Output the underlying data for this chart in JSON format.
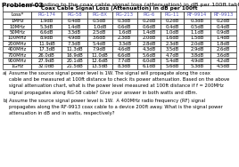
{
  "title_bold": "Problem 03",
  "title_text": "   According to the coax cable signal loss (attenuation) in dB per 100ft table:",
  "table_title": "Coax Cable Signal Loss (Attenuation) in dB per 100ft",
  "headers": [
    "Loss*",
    "RG-174",
    "RG-58",
    "RG-8X",
    "RG-213",
    "RG-6",
    "RG-11",
    "RF-9914",
    "RF-9913"
  ],
  "rows": [
    [
      "1MHz",
      "1.9dB",
      "0.4dB",
      "0.5dB",
      "0.3dB",
      "0.2dB",
      "0.2dB",
      "0.3dB",
      "0.2dB"
    ],
    [
      "10MHz",
      "5.3dB",
      "1.4dB",
      "1.0dB",
      "0.6dB",
      "0.6dB",
      "0.4dB",
      "0.5dB",
      "0.4dB"
    ],
    [
      "50MHz",
      "6.6dB",
      "3.3dB",
      "2.5dB",
      "1.6dB",
      "1.4dB",
      "1.0dB",
      "1.1dB",
      "0.9dB"
    ],
    [
      "100MHz",
      "8.9dB",
      "4.9dB",
      "3.6dB",
      "2.3dB",
      "2.0dB",
      "1.6dB",
      "1.5dB",
      "1.4dB"
    ],
    [
      "200MHz",
      "11.9dB",
      "7.3dB",
      "5.4dB",
      "3.3dB",
      "2.8dB",
      "2.3dB",
      "2.0dB",
      "1.8dB"
    ],
    [
      "400MHz",
      "17.3dB",
      "11.3dB",
      "7.9dB",
      "4.6dB",
      "4.3dB",
      "3.5dB",
      "2.9dB",
      "2.6dB"
    ],
    [
      "700MHz",
      "26.0dB",
      "16.9dB",
      "11.0dB",
      "6.6dB",
      "5.6dB",
      "4.7dB",
      "3.8dB",
      "3.6dB"
    ],
    [
      "900MHz",
      "27.9dB",
      "20.1dB",
      "12.6dB",
      "7.7dB",
      "6.0dB",
      "5.4dB",
      "4.9dB",
      "4.2dB"
    ],
    [
      "1GHz",
      "32.0dB",
      "21.5dB",
      "13.5dB",
      "8.3dB",
      "6.1dB",
      "5.6dB",
      "5.3dB",
      "4.5dB"
    ]
  ],
  "note_a_label": "a)",
  "note_a_lines": [
    "Assume the source signal power level is 1W. The signal will propagate along the coax",
    "cable and be measured at 100ft distance to check its power attenuation. Based on the above",
    "signal attenuation chart, what is the power level measured at 100ft distance if f = 200MHz",
    "signal propagates along RG-58 cable? Give your answer in both watts and dBm."
  ],
  "note_b_label": "b)",
  "note_b_lines": [
    "Assume the source signal power level is 1W.  A 400MHz radio frequency (RF) signal",
    "propagates along the RF-9913 coax cable to a device 200ft away. What is the signal power",
    "attenuation in dB and in watts, respectively?"
  ],
  "header_color": "#5555bb",
  "bg_color": "#ffffff",
  "text_color": "#000000",
  "cell_fs": 3.8,
  "header_fs": 3.9,
  "title_row_fs": 4.2,
  "note_fs": 3.8,
  "main_title_fs": 5.2
}
